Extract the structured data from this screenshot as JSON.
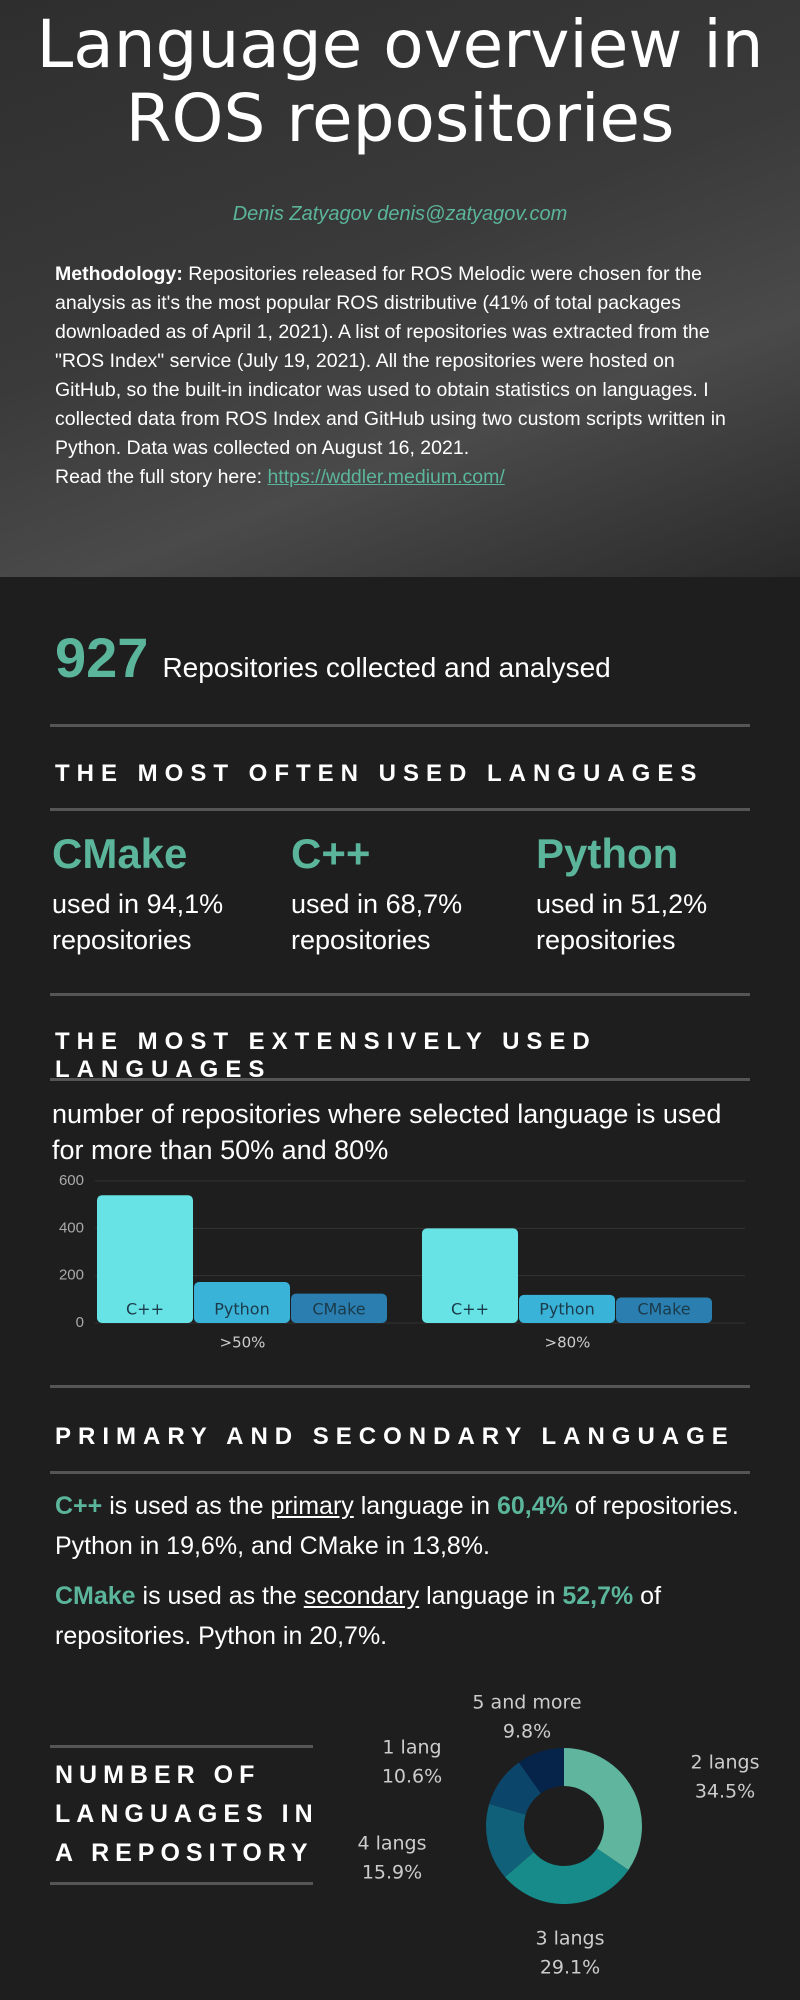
{
  "header": {
    "title": "Language overview in ROS repositories",
    "author": "Denis Zatyagov denis@zatyagov.com",
    "methodology_label": "Methodology:",
    "methodology": "Repositories released for ROS Melodic were chosen for the analysis as it's the most popular ROS distributive (41% of total packages downloaded as of April 1, 2021). A list of repositories was extracted from the \"ROS Index\" service (July 19, 2021). All the repositories were hosted on GitHub, so the built-in indicator was used to obtain statistics on languages. I collected data from ROS Index and GitHub using two custom scripts written in Python. Data was collected on August 16, 2021.",
    "read_more": "Read the full story here:",
    "link": "https://wddler.medium.com/"
  },
  "summary": {
    "count": 927,
    "text": "Repositories collected and analysed"
  },
  "often_used": {
    "heading": "THE MOST OFTEN USED LANGUAGES",
    "languages": [
      {
        "name": "CMake",
        "text": "used in 94,1% repositories"
      },
      {
        "name": "C++",
        "text": "used in 68,7% repositories"
      },
      {
        "name": "Python",
        "text": "used in 51,2% repositories"
      }
    ]
  },
  "extensive": {
    "heading": "THE MOST EXTENSIVELY USED LANGUAGES"
  },
  "primary_secondary": {
    "heading": "PRIMARY AND SECONDARY LANGUAGE",
    "paragraphs": [
      {
        "language": "C++",
        "before": "is used as the",
        "role": "primary",
        "middle": "language in",
        "share": "60,4%",
        "after": "of repositories. Python in 19,6%, and CMake in 13,8%."
      },
      {
        "language": "CMake",
        "before": "is used as the",
        "role": "secondary",
        "middle": "language in",
        "share": "52,7%",
        "after": "of repositories. Python in 20,7%."
      }
    ]
  },
  "chart_data": [
    {
      "type": "bar",
      "title": "number of repositories where selected language is used for more than 50% and 80%",
      "categories": [
        ">50%",
        ">80%"
      ],
      "series": [
        {
          "name": "C++",
          "color": "#67e3e6",
          "values": [
            540,
            400
          ]
        },
        {
          "name": "Python",
          "color": "#3ab3d8",
          "values": [
            173,
            119
          ]
        },
        {
          "name": "CMake",
          "color": "#2a7fb0",
          "values": [
            124,
            108
          ]
        }
      ],
      "ylim": [
        0,
        600
      ],
      "yticks": [
        0,
        200,
        400,
        600
      ],
      "grid": true
    },
    {
      "type": "pie",
      "title": "NUMBER OF LANGUAGES IN A REPOSITORY",
      "categories": [
        "2 langs",
        "3 langs",
        "4 langs",
        "1 lang",
        "5 and more"
      ],
      "values": [
        34.5,
        29.1,
        15.9,
        10.6,
        9.8
      ],
      "value_labels": [
        "34.5%",
        "29.1%",
        "15.9%",
        "10.6%",
        "9.8%"
      ],
      "colors": [
        "#5fb59e",
        "#178a8a",
        "#0f6078",
        "#0b456a",
        "#06234a"
      ]
    }
  ]
}
